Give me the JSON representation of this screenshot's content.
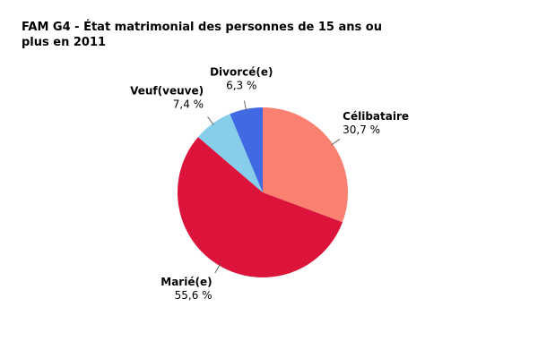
{
  "chart_data": {
    "type": "pie",
    "title": "FAM G4 - État matrimonial des personnes de 15 ans ou plus en 2011",
    "categories": [
      "Célibataire",
      "Marié(e)",
      "Veuf(veuve)",
      "Divorcé(e)"
    ],
    "values": [
      30.7,
      55.6,
      7.4,
      6.3
    ],
    "value_labels": [
      "30,7 %",
      "55,6 %",
      "7,4 %",
      "6,3 %"
    ],
    "colors": [
      "#fa8072",
      "#dc143c",
      "#87ceeb",
      "#4169e1"
    ]
  }
}
